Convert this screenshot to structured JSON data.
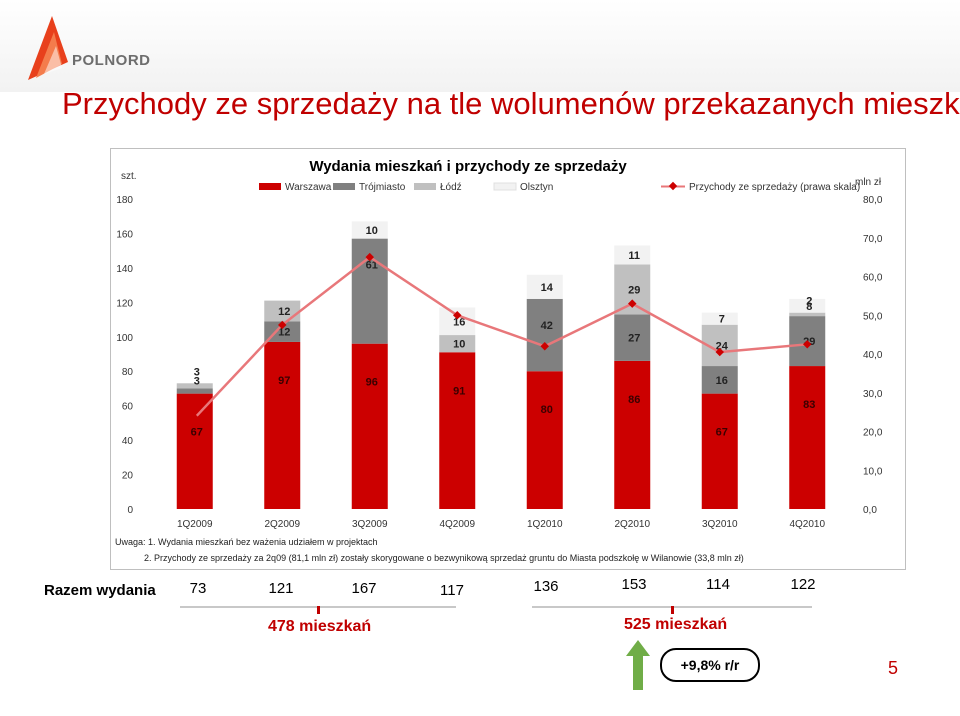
{
  "brand": {
    "name": "POLNORD",
    "accent": "#c00000"
  },
  "slide": {
    "title": "Przychody ze sprzedaży na tle wolumenów przekazanych mieszkań",
    "page_number": "5"
  },
  "chart_data": {
    "type": "bar",
    "stacked": true,
    "title": "Wydania mieszkań  i przychody ze sprzedaży",
    "ylabel_left": "szt.",
    "ylabel_right": "mln zł",
    "ylim_left": [
      0,
      180
    ],
    "ylim_right": [
      0,
      80
    ],
    "yticks_left": [
      "0",
      "20",
      "40",
      "60",
      "80",
      "100",
      "120",
      "140",
      "160",
      "180"
    ],
    "yticks_right": [
      "0,0",
      "10,0",
      "20,0",
      "30,0",
      "40,0",
      "50,0",
      "60,0",
      "70,0",
      "80,0"
    ],
    "categories": [
      "1Q2009",
      "2Q2009",
      "3Q2009",
      "4Q2009",
      "1Q2010",
      "2Q2010",
      "3Q2010",
      "4Q2010"
    ],
    "series": [
      {
        "name": "Warszawa",
        "color": "#cc0000",
        "values": [
          67,
          97,
          96,
          91,
          80,
          86,
          67,
          83
        ],
        "labels": [
          "67",
          "97",
          "96",
          "91",
          "80",
          "86",
          "67",
          "83"
        ]
      },
      {
        "name": "Trójmiasto",
        "color": "#808080",
        "values": [
          3,
          12,
          61,
          0,
          42,
          27,
          16,
          29
        ],
        "labels": [
          "3",
          "12",
          "61",
          "",
          "42",
          "27",
          "16",
          "29"
        ]
      },
      {
        "name": "Łódź",
        "color": "#c0c0c0",
        "values": [
          3,
          12,
          0,
          10,
          0,
          29,
          24,
          2
        ],
        "labels": [
          "3",
          "12",
          "",
          "10",
          "",
          "29",
          "24",
          "2"
        ]
      },
      {
        "name": "Olsztyn",
        "color": "#f2f2f2",
        "values": [
          0,
          0,
          10,
          16,
          14,
          11,
          7,
          8
        ],
        "labels": [
          "",
          "",
          "10",
          "16",
          "14",
          "11",
          "7",
          "8"
        ]
      }
    ],
    "line": {
      "name": "Przychody ze sprzedaży (prawa skala)",
      "color": "#e8777a",
      "marker_color": "#cc0000",
      "values": [
        23.5,
        47.5,
        65.0,
        50.0,
        42.0,
        53.0,
        40.5,
        42.5
      ]
    },
    "legend_position": "top",
    "grid": false
  },
  "notes": {
    "note1": "Uwaga: 1. Wydania mieszkań bez ważenia udziałem w projektach",
    "note2": "2. Przychody ze sprzedaży za 2q09 (81,1 mln zł) zostały skorygowane o bezwynikową sprzedaż gruntu do Miasta podszkołę w Wilanowie (33,8 mln zł)"
  },
  "totals": {
    "label": "Razem wydania",
    "values": [
      "73",
      "121",
      "167",
      "117",
      "136",
      "153",
      "114",
      "122"
    ],
    "sum_2009": "478 mieszkań",
    "sum_2010": "525 mieszkań",
    "yoy": "+9,8% r/r"
  }
}
